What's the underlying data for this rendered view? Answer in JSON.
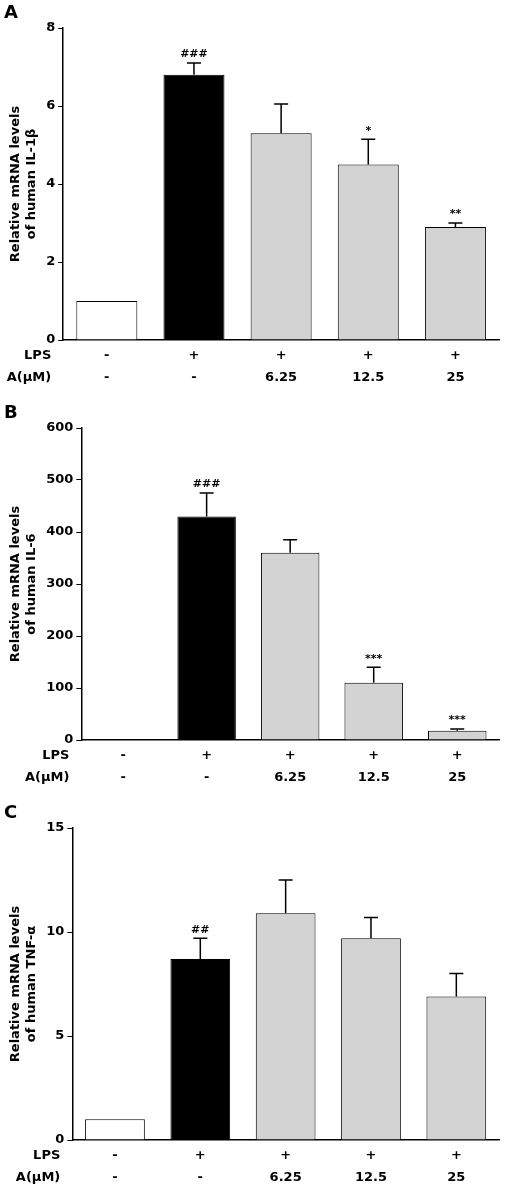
{
  "chart_data": [
    {
      "type": "bar",
      "panel": "A",
      "y_label": [
        "Relative mRNA levels",
        "of human IL-1β"
      ],
      "row_labels": [
        "LPS",
        "A(μM)"
      ],
      "categories": [
        [
          "-",
          "-"
        ],
        [
          "+",
          "-"
        ],
        [
          "+",
          "6.25"
        ],
        [
          "+",
          "12.5"
        ],
        [
          "+",
          "25"
        ]
      ],
      "values": [
        1,
        6.8,
        5.3,
        4.5,
        2.9
      ],
      "errors": [
        0,
        0.3,
        0.75,
        0.65,
        0.1
      ],
      "annotations": [
        null,
        "###",
        null,
        "*",
        "**"
      ],
      "colors": [
        "#ffffff",
        "#000000",
        "#d3d3d3",
        "#d3d3d3",
        "#d3d3d3"
      ],
      "ylim": [
        0,
        8
      ],
      "yticks": [
        0,
        2,
        4,
        6,
        8
      ],
      "grid": false
    },
    {
      "type": "bar",
      "panel": "B",
      "y_label": [
        "Relative mRNA levels",
        "of human IL-6"
      ],
      "row_labels": [
        "LPS",
        "A(μM)"
      ],
      "categories": [
        [
          "-",
          "-"
        ],
        [
          "+",
          "-"
        ],
        [
          "+",
          "6.25"
        ],
        [
          "+",
          "12.5"
        ],
        [
          "+",
          "25"
        ]
      ],
      "values": [
        1,
        430,
        360,
        110,
        18
      ],
      "errors": [
        0,
        45,
        25,
        30,
        3
      ],
      "annotations": [
        null,
        "###",
        null,
        "***",
        "***"
      ],
      "colors": [
        "#ffffff",
        "#000000",
        "#d3d3d3",
        "#d3d3d3",
        "#d3d3d3"
      ],
      "ylim": [
        0,
        600
      ],
      "yticks": [
        0,
        100,
        200,
        300,
        400,
        500,
        600
      ],
      "grid": false
    },
    {
      "type": "bar",
      "panel": "C",
      "y_label": [
        "Relative mRNA levels",
        "of human TNF-α"
      ],
      "row_labels": [
        "LPS",
        "A(μM)"
      ],
      "categories": [
        [
          "-",
          "-"
        ],
        [
          "+",
          "-"
        ],
        [
          "+",
          "6.25"
        ],
        [
          "+",
          "12.5"
        ],
        [
          "+",
          "25"
        ]
      ],
      "values": [
        1,
        8.7,
        10.9,
        9.7,
        6.9
      ],
      "errors": [
        0,
        1.0,
        1.6,
        1.0,
        1.1
      ],
      "annotations": [
        null,
        "##",
        null,
        null,
        null
      ],
      "colors": [
        "#ffffff",
        "#000000",
        "#d3d3d3",
        "#d3d3d3",
        "#d3d3d3"
      ],
      "ylim": [
        0,
        15
      ],
      "yticks": [
        0,
        5,
        10,
        15
      ],
      "grid": false
    }
  ]
}
